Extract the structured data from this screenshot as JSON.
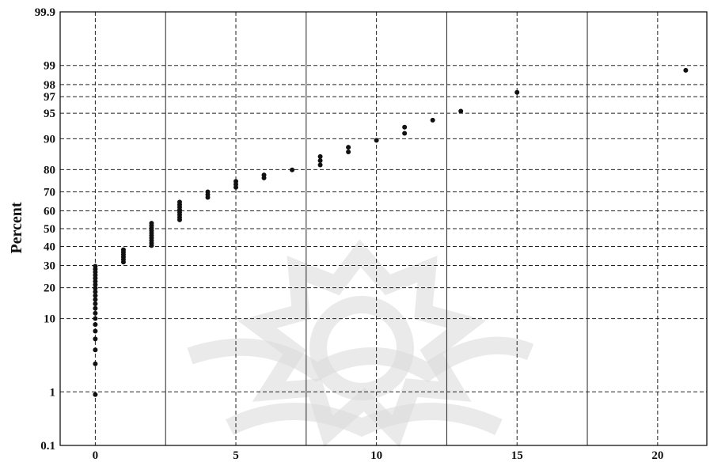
{
  "chart_data": {
    "type": "scatter",
    "title": "",
    "xlabel": "",
    "ylabel": "Percent",
    "y_scale": "normal-probability",
    "xlim": [
      -1.25,
      21.75
    ],
    "ylim": [
      0.1,
      99.9
    ],
    "x_ticks": [
      0,
      5,
      10,
      15,
      20
    ],
    "x_tick_labels": [
      "0",
      "5",
      "10",
      "15",
      "20"
    ],
    "y_ticks": [
      0.1,
      1,
      10,
      20,
      30,
      40,
      50,
      60,
      70,
      80,
      90,
      95,
      97,
      98,
      99,
      99.9
    ],
    "y_tick_labels": [
      "0.1",
      "1",
      "10",
      "20",
      "30",
      "40",
      "50",
      "60",
      "70",
      "80",
      "90",
      "95",
      "97",
      "98",
      "99",
      "99.9"
    ],
    "grid": true,
    "legend": "none",
    "marker_color": "#111111",
    "series": [
      {
        "points": [
          {
            "x": 0,
            "y": 0.9
          },
          {
            "x": 0,
            "y": 2.7
          },
          {
            "x": 0,
            "y": 4.2
          },
          {
            "x": 0,
            "y": 5.8
          },
          {
            "x": 0,
            "y": 7.2
          },
          {
            "x": 0,
            "y": 8.6
          },
          {
            "x": 0,
            "y": 10.0
          },
          {
            "x": 0,
            "y": 11.4
          },
          {
            "x": 0,
            "y": 12.8
          },
          {
            "x": 0,
            "y": 14.2
          },
          {
            "x": 0,
            "y": 15.6
          },
          {
            "x": 0,
            "y": 17.0
          },
          {
            "x": 0,
            "y": 18.4
          },
          {
            "x": 0,
            "y": 19.8
          },
          {
            "x": 0,
            "y": 21.2
          },
          {
            "x": 0,
            "y": 22.6
          },
          {
            "x": 0,
            "y": 24.0
          },
          {
            "x": 0,
            "y": 25.4
          },
          {
            "x": 0,
            "y": 26.8
          },
          {
            "x": 0,
            "y": 28.2
          },
          {
            "x": 0,
            "y": 29.6
          },
          {
            "x": 1,
            "y": 31.7
          },
          {
            "x": 1,
            "y": 33.0
          },
          {
            "x": 1,
            "y": 34.3
          },
          {
            "x": 1,
            "y": 35.6
          },
          {
            "x": 1,
            "y": 36.9
          },
          {
            "x": 1,
            "y": 38.2
          },
          {
            "x": 2,
            "y": 40.5
          },
          {
            "x": 2,
            "y": 41.9
          },
          {
            "x": 2,
            "y": 43.3
          },
          {
            "x": 2,
            "y": 44.7
          },
          {
            "x": 2,
            "y": 46.1
          },
          {
            "x": 2,
            "y": 47.5
          },
          {
            "x": 2,
            "y": 48.9
          },
          {
            "x": 2,
            "y": 50.3
          },
          {
            "x": 2,
            "y": 51.7
          },
          {
            "x": 2,
            "y": 53.1
          },
          {
            "x": 3,
            "y": 55.0
          },
          {
            "x": 3,
            "y": 56.4
          },
          {
            "x": 3,
            "y": 57.8
          },
          {
            "x": 3,
            "y": 59.2
          },
          {
            "x": 3,
            "y": 60.6
          },
          {
            "x": 3,
            "y": 62.0
          },
          {
            "x": 3,
            "y": 63.4
          },
          {
            "x": 3,
            "y": 64.8
          },
          {
            "x": 4,
            "y": 67.2
          },
          {
            "x": 4,
            "y": 68.6
          },
          {
            "x": 4,
            "y": 70.0
          },
          {
            "x": 5,
            "y": 72.2
          },
          {
            "x": 5,
            "y": 73.6
          },
          {
            "x": 5,
            "y": 75.0
          },
          {
            "x": 6,
            "y": 76.5
          },
          {
            "x": 6,
            "y": 77.8
          },
          {
            "x": 7,
            "y": 79.9
          },
          {
            "x": 8,
            "y": 81.8
          },
          {
            "x": 8,
            "y": 83.4
          },
          {
            "x": 8,
            "y": 84.8
          },
          {
            "x": 9,
            "y": 86.3
          },
          {
            "x": 9,
            "y": 87.7
          },
          {
            "x": 10,
            "y": 89.6
          },
          {
            "x": 11,
            "y": 91.3
          },
          {
            "x": 11,
            "y": 92.6
          },
          {
            "x": 12,
            "y": 93.9
          },
          {
            "x": 13,
            "y": 95.3
          },
          {
            "x": 15,
            "y": 97.4
          },
          {
            "x": 21,
            "y": 98.8
          }
        ]
      }
    ]
  }
}
